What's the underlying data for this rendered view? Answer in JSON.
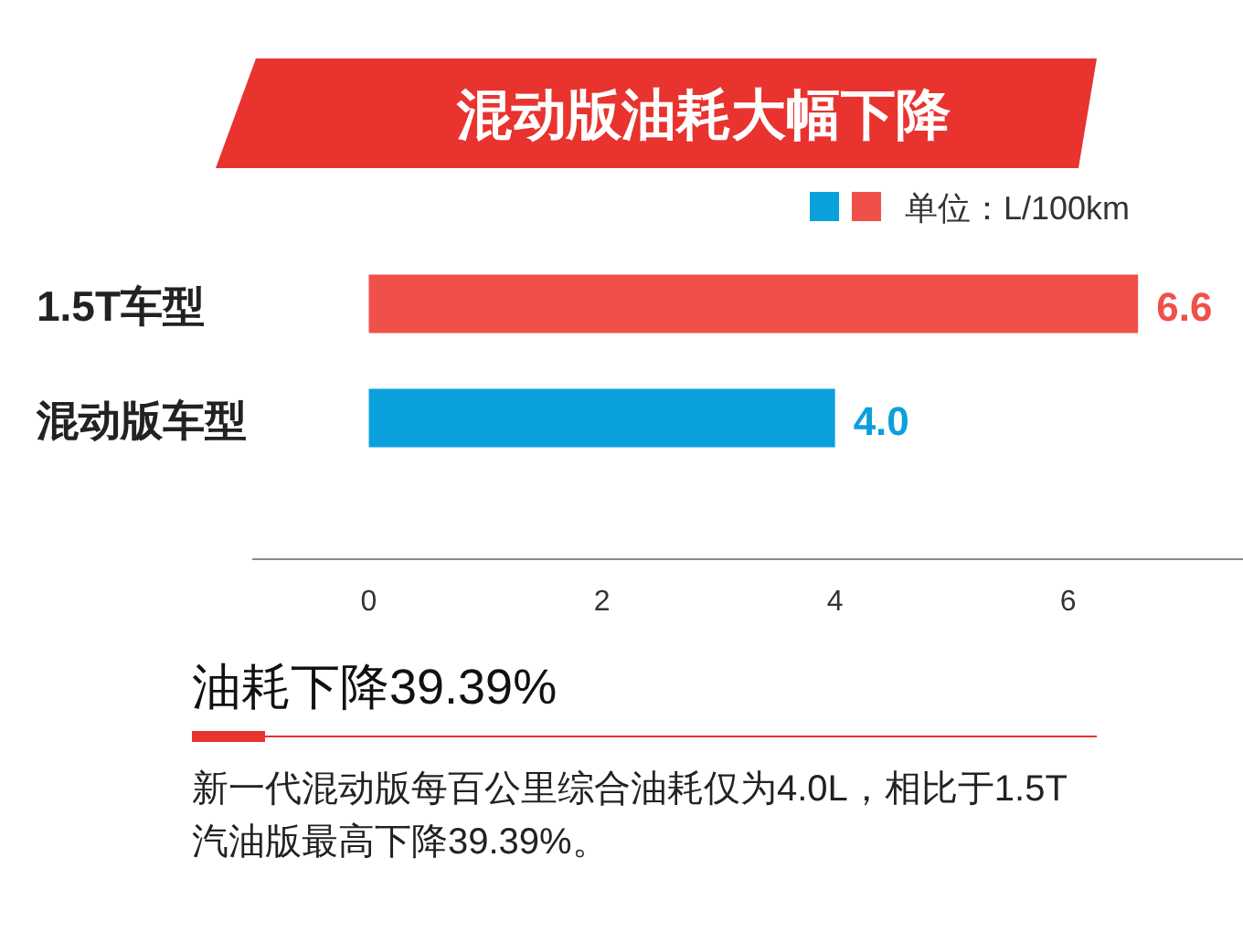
{
  "chart_data": {
    "type": "bar",
    "orientation": "horizontal",
    "title": "混动版油耗大幅下降",
    "subtitle": "油耗下降39.39%",
    "categories": [
      "1.5T车型",
      "混动版车型"
    ],
    "values": [
      6.6,
      4.0
    ],
    "colors": [
      "#f0504a",
      "#0aa0dc"
    ],
    "value_labels": [
      "6.6",
      "4.0"
    ],
    "xlim": [
      -1,
      7.5
    ],
    "xticks": [
      0,
      2,
      4,
      6
    ],
    "grid": false,
    "annotations": [
      "单位：L/100km",
      "新一代混动版每百公里综合油耗仅为4.0L，相比于1.5T汽油版最高下降39.39%。"
    ]
  }
}
